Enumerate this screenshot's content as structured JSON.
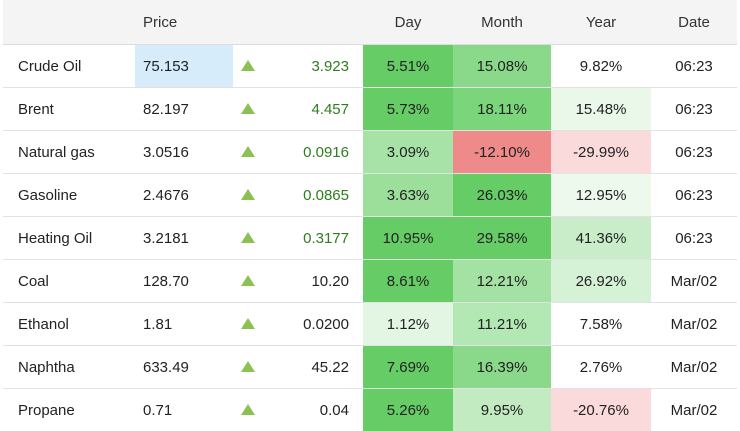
{
  "headers": {
    "name": "",
    "price": "Price",
    "arrow": "",
    "change": "",
    "day": "Day",
    "month": "Month",
    "year": "Year",
    "date": "Date"
  },
  "colors": {
    "up_arrow": "#8cc152",
    "change_green": "#2e7d1e",
    "price_highlight": "#d6ecfb"
  },
  "rows": [
    {
      "name": "Crude Oil",
      "price": "75.153",
      "change": "3.923",
      "change_green": true,
      "price_highlight": true,
      "day": "5.51%",
      "month": "15.08%",
      "year": "9.82%",
      "date": "06:23",
      "day_bg": "#66cc66",
      "month_bg": "#8ad98a",
      "year_bg": "#ffffff"
    },
    {
      "name": "Brent",
      "price": "82.197",
      "change": "4.457",
      "change_green": true,
      "price_highlight": false,
      "day": "5.73%",
      "month": "18.11%",
      "year": "15.48%",
      "date": "06:23",
      "day_bg": "#66cc66",
      "month_bg": "#7bd57b",
      "year_bg": "#eaf8ea"
    },
    {
      "name": "Natural gas",
      "price": "3.0516",
      "change": "0.0916",
      "change_green": true,
      "price_highlight": false,
      "day": "3.09%",
      "month": "-12.10%",
      "year": "-29.99%",
      "date": "06:23",
      "day_bg": "#a7e3a7",
      "month_bg": "#ee8a8a",
      "year_bg": "#fadada"
    },
    {
      "name": "Gasoline",
      "price": "2.4676",
      "change": "0.0865",
      "change_green": true,
      "price_highlight": false,
      "day": "3.63%",
      "month": "26.03%",
      "year": "12.95%",
      "date": "06:23",
      "day_bg": "#9bdf9b",
      "month_bg": "#66cc66",
      "year_bg": "#eef9ee"
    },
    {
      "name": "Heating Oil",
      "price": "3.2181",
      "change": "0.3177",
      "change_green": true,
      "price_highlight": false,
      "day": "10.95%",
      "month": "29.58%",
      "year": "41.36%",
      "date": "06:23",
      "day_bg": "#66cc66",
      "month_bg": "#66cc66",
      "year_bg": "#c8edc8"
    },
    {
      "name": "Coal",
      "price": "128.70",
      "change": "10.20",
      "change_green": false,
      "price_highlight": false,
      "day": "8.61%",
      "month": "12.21%",
      "year": "26.92%",
      "date": "Mar/02",
      "day_bg": "#66cc66",
      "month_bg": "#a4e2a4",
      "year_bg": "#d6f2d6"
    },
    {
      "name": "Ethanol",
      "price": "1.81",
      "change": "0.0200",
      "change_green": false,
      "price_highlight": false,
      "day": "1.12%",
      "month": "11.21%",
      "year": "7.58%",
      "date": "Mar/02",
      "day_bg": "#e3f6e3",
      "month_bg": "#b3e7b3",
      "year_bg": "#ffffff"
    },
    {
      "name": "Naphtha",
      "price": "633.49",
      "change": "45.22",
      "change_green": false,
      "price_highlight": false,
      "day": "7.69%",
      "month": "16.39%",
      "year": "2.76%",
      "date": "Mar/02",
      "day_bg": "#66cc66",
      "month_bg": "#8ad98a",
      "year_bg": "#ffffff"
    },
    {
      "name": "Propane",
      "price": "0.71",
      "change": "0.04",
      "change_green": false,
      "price_highlight": false,
      "day": "5.26%",
      "month": "9.95%",
      "year": "-20.76%",
      "date": "Mar/02",
      "day_bg": "#66cc66",
      "month_bg": "#c2ebc2",
      "year_bg": "#fadada"
    }
  ]
}
